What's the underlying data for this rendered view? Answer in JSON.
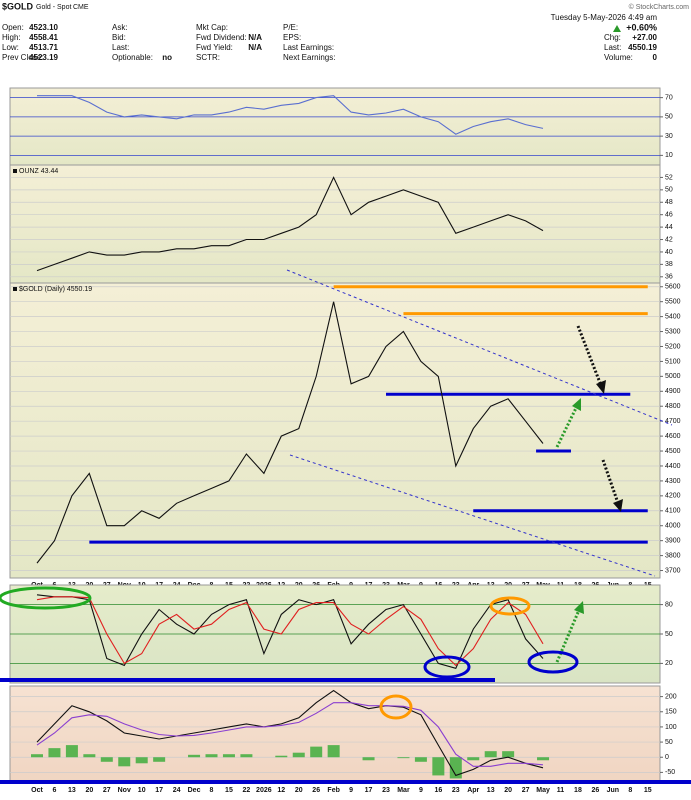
{
  "header": {
    "symbol": "$GOLD",
    "name": "Gold - Spot",
    "exchange": "CME",
    "watermark": "© StockCharts.com",
    "date": "Tuesday  5-May-2026 4:49 am",
    "change": "+0.60%",
    "columns": [
      [
        {
          "label": "Open:",
          "value": "4523.10"
        },
        {
          "label": "High:",
          "value": "4558.41"
        },
        {
          "label": "Low:",
          "value": "4513.71"
        },
        {
          "label": "Prev Close:",
          "value": "4523.19"
        }
      ],
      [
        {
          "label": "Ask:"
        },
        {
          "label": "Bid:"
        },
        {
          "label": "Last:"
        },
        {
          "label": "Optionable:",
          "value": "no"
        }
      ],
      [
        {
          "label": "Mkt Cap:"
        },
        {
          "label": "Fwd Dividend:",
          "value": "N/A"
        },
        {
          "label": "Fwd Yield:",
          "value": "N/A"
        },
        {
          "label": "SCTR:"
        }
      ],
      [
        {
          "label": "P/E:"
        },
        {
          "label": "EPS:"
        },
        {
          "label": "Last Earnings:"
        },
        {
          "label": "Next Earnings:"
        }
      ],
      [
        {
          "label": "Chg:",
          "value": "+27.00"
        },
        {
          "label": "Last:",
          "value": "4550.19"
        },
        {
          "label": "Volume:",
          "value": "0"
        }
      ]
    ]
  },
  "chart_data": [
    {
      "type": "line",
      "ylim": [
        0,
        80
      ],
      "yticks": [
        10,
        30,
        50,
        70
      ],
      "grid": true,
      "grid_color": "#3344cc",
      "series": [
        {
          "color": "#5a6fd0",
          "values": [
            72,
            72,
            72,
            65,
            55,
            50,
            52,
            50,
            48,
            52,
            52,
            55,
            60,
            58,
            62,
            64,
            70,
            72,
            55,
            52,
            54,
            58,
            50,
            45,
            32,
            40,
            45,
            48,
            42,
            38,
            null,
            null,
            null,
            null,
            null,
            null
          ]
        }
      ]
    },
    {
      "type": "line",
      "title": "OUNZ 43.44",
      "ylim": [
        35,
        54
      ],
      "yticks": [
        36,
        38,
        40,
        42,
        44,
        46,
        48,
        50,
        52
      ],
      "grid": true,
      "grid_color": "#cccccc",
      "series": [
        {
          "color": "#111111",
          "values": [
            37,
            38,
            39,
            40,
            39.5,
            39.5,
            40,
            40,
            40.5,
            40.5,
            41,
            41,
            42,
            42,
            43,
            44,
            46,
            52,
            46,
            48,
            49,
            50,
            49,
            48,
            43,
            44,
            45,
            46,
            45,
            43.44,
            null,
            null,
            null,
            null,
            null,
            null
          ]
        }
      ]
    },
    {
      "type": "line",
      "title": "$GOLD (Daily) 4550.19",
      "ylim": [
        3650,
        5625
      ],
      "yticks": [
        3700,
        3800,
        3900,
        4000,
        4100,
        4200,
        4300,
        4400,
        4500,
        4600,
        4700,
        4800,
        4900,
        5000,
        5100,
        5200,
        5300,
        5400,
        5500,
        5600
      ],
      "grid": true,
      "grid_color": "#cccccc",
      "categories": [
        "Oct",
        "6",
        "13",
        "20",
        "27",
        "Nov",
        "10",
        "17",
        "24",
        "Dec",
        "8",
        "15",
        "22",
        "2026",
        "12",
        "20",
        "26",
        "Feb",
        "9",
        "17",
        "23",
        "Mar",
        "9",
        "16",
        "23",
        "Apr",
        "13",
        "20",
        "27",
        "May",
        "11",
        "18",
        "26",
        "Jun",
        "8",
        "15"
      ],
      "series": [
        {
          "color": "#111111",
          "values": [
            3750,
            3900,
            4200,
            4350,
            4000,
            4000,
            4100,
            4050,
            4150,
            4200,
            4250,
            4300,
            4480,
            4350,
            4600,
            4650,
            5000,
            5500,
            4950,
            5000,
            5200,
            5300,
            5100,
            5000,
            4400,
            4650,
            4800,
            4850,
            4700,
            4550.19,
            null,
            null,
            null,
            null,
            null,
            null
          ]
        }
      ],
      "hlines": [
        {
          "value": 5600,
          "color": "#ff9900"
        },
        {
          "value": 5420,
          "color": "#ff9900"
        },
        {
          "value": 4880,
          "color": "#0000cc"
        },
        {
          "value": 4500,
          "color": "#0000cc"
        },
        {
          "value": 4100,
          "color": "#0000cc"
        },
        {
          "value": 3890,
          "color": "#0000cc"
        }
      ]
    },
    {
      "type": "line",
      "ylim": [
        0,
        100
      ],
      "yticks": [
        20,
        50,
        80
      ],
      "grid": true,
      "grid_color": "#2e8b2e",
      "series": [
        {
          "color": "#111111",
          "values": [
            90,
            88,
            88,
            85,
            25,
            18,
            50,
            75,
            60,
            50,
            70,
            80,
            85,
            30,
            70,
            85,
            80,
            85,
            40,
            60,
            75,
            80,
            50,
            20,
            15,
            55,
            80,
            85,
            45,
            25,
            null,
            null,
            null,
            null,
            null,
            null
          ]
        },
        {
          "color": "#e02020",
          "values": [
            85,
            88,
            88,
            87,
            50,
            20,
            30,
            60,
            70,
            55,
            60,
            75,
            82,
            55,
            50,
            75,
            82,
            82,
            60,
            50,
            65,
            78,
            65,
            35,
            18,
            35,
            65,
            82,
            70,
            40,
            null,
            null,
            null,
            null,
            null,
            null
          ]
        }
      ]
    },
    {
      "type": "line",
      "ylim": [
        -85,
        235
      ],
      "yticks": [
        -50,
        0,
        50,
        100,
        150,
        200
      ],
      "grid": true,
      "grid_color": "#cccccc",
      "categories": [
        "Oct",
        "6",
        "13",
        "20",
        "27",
        "Nov",
        "10",
        "17",
        "24",
        "Dec",
        "8",
        "15",
        "22",
        "2026",
        "12",
        "20",
        "26",
        "Feb",
        "9",
        "17",
        "23",
        "Mar",
        "9",
        "16",
        "23",
        "Apr",
        "13",
        "20",
        "27",
        "May",
        "11",
        "18",
        "26",
        "Jun",
        "8",
        "15"
      ],
      "series": [
        {
          "type": "bar",
          "color": "#33aa33",
          "values": [
            10,
            30,
            40,
            10,
            -15,
            -30,
            -20,
            -15,
            0,
            8,
            10,
            10,
            10,
            0,
            5,
            15,
            35,
            40,
            0,
            -10,
            0,
            -3,
            -15,
            -60,
            -70,
            -10,
            20,
            20,
            0,
            -10,
            null,
            null,
            null,
            null,
            null,
            null
          ]
        },
        {
          "color": "#111111",
          "values": [
            50,
            110,
            170,
            150,
            120,
            80,
            70,
            60,
            70,
            80,
            90,
            100,
            110,
            100,
            110,
            130,
            180,
            220,
            180,
            160,
            170,
            165,
            140,
            40,
            -60,
            -40,
            -10,
            0,
            -20,
            -35,
            null,
            null,
            null,
            null,
            null,
            null
          ]
        },
        {
          "color": "#8a3fd0",
          "values": [
            40,
            80,
            130,
            140,
            135,
            110,
            90,
            75,
            70,
            72,
            80,
            90,
            100,
            100,
            105,
            115,
            145,
            180,
            180,
            170,
            170,
            168,
            155,
            100,
            10,
            -30,
            -30,
            -20,
            -20,
            -25,
            null,
            null,
            null,
            null,
            null,
            null
          ]
        }
      ]
    }
  ]
}
